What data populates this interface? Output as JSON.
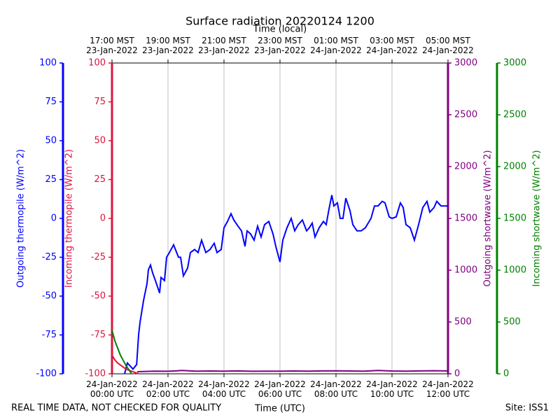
{
  "chart_data": {
    "type": "line",
    "title": "Surface radiation 20220124 1200",
    "x_label": "Time (UTC)",
    "x_top_label": "Time (local)",
    "footer_left": "REAL TIME DATA, NOT CHECKED FOR QUALITY",
    "footer_right": "Site: ISS1",
    "xlim": [
      0,
      12
    ],
    "xticks": [
      {
        "value": 0,
        "label": "24-Jan-2022\n00:00 UTC"
      },
      {
        "value": 2,
        "label": "24-Jan-2022\n02:00 UTC"
      },
      {
        "value": 4,
        "label": "24-Jan-2022\n04:00 UTC"
      },
      {
        "value": 6,
        "label": "24-Jan-2022\n06:00 UTC"
      },
      {
        "value": 8,
        "label": "24-Jan-2022\n08:00 UTC"
      },
      {
        "value": 10,
        "label": "24-Jan-2022\n10:00 UTC"
      },
      {
        "value": 12,
        "label": "24-Jan-2022\n12:00 UTC"
      }
    ],
    "x_top_ticks": [
      {
        "value": 0,
        "label": "17:00 MST\n23-Jan-2022"
      },
      {
        "value": 2,
        "label": "19:00 MST\n23-Jan-2022"
      },
      {
        "value": 4,
        "label": "21:00 MST\n23-Jan-2022"
      },
      {
        "value": 6,
        "label": "23:00 MST\n23-Jan-2022"
      },
      {
        "value": 8,
        "label": "01:00 MST\n24-Jan-2022"
      },
      {
        "value": 10,
        "label": "03:00 MST\n24-Jan-2022"
      },
      {
        "value": 12,
        "label": "05:00 MST\n24-Jan-2022"
      }
    ],
    "grid": true,
    "axes": [
      {
        "label": "Outgoing thermopile (W/m^2)",
        "color": "#0000ff",
        "ylim": [
          -100,
          100
        ],
        "yticks": [
          -100,
          -75,
          -50,
          -25,
          0,
          25,
          50,
          75,
          100
        ]
      },
      {
        "label": "Incoming thermopile (W/m^2)",
        "color": "#dc143c",
        "ylim": [
          -100,
          100
        ],
        "yticks": [
          -100,
          -75,
          -50,
          -25,
          0,
          25,
          50,
          75,
          100
        ]
      },
      {
        "label": "Outgoing shortwave (W/m^2)",
        "color": "#800080",
        "ylim": [
          0,
          3000
        ],
        "yticks": [
          0,
          500,
          1000,
          1500,
          2000,
          2500,
          3000
        ]
      },
      {
        "label": "Incoming shortwave (W/m^2)",
        "color": "#008000",
        "ylim": [
          0,
          3000
        ],
        "yticks": [
          0,
          500,
          1000,
          1500,
          2000,
          2500,
          3000
        ]
      }
    ],
    "series": [
      {
        "name": "Outgoing thermopile",
        "color": "#0000ff",
        "axis": 0,
        "x": [
          0.45,
          0.55,
          0.65,
          0.75,
          0.88,
          0.95,
          1.0,
          1.125,
          1.25,
          1.3,
          1.375,
          1.45,
          1.55,
          1.7,
          1.75,
          1.875,
          1.95,
          2.05,
          2.2,
          2.375,
          2.45,
          2.55,
          2.7,
          2.8,
          2.95,
          3.075,
          3.2,
          3.35,
          3.5,
          3.65,
          3.75,
          3.9,
          4.0,
          4.125,
          4.25,
          4.35,
          4.5,
          4.625,
          4.75,
          4.825,
          4.95,
          5.075,
          5.2,
          5.325,
          5.45,
          5.6,
          5.75,
          5.85,
          6.0,
          6.1,
          6.25,
          6.4,
          6.525,
          6.65,
          6.8,
          6.95,
          7.05,
          7.15,
          7.25,
          7.4,
          7.55,
          7.65,
          7.75,
          7.85,
          7.925,
          8.05,
          8.15,
          8.25,
          8.35,
          8.5,
          8.6,
          8.75,
          8.9,
          9.05,
          9.25,
          9.375,
          9.5,
          9.65,
          9.75,
          9.9,
          10.0,
          10.15,
          10.3,
          10.4,
          10.5,
          10.65,
          10.8,
          10.95,
          11.1,
          11.25,
          11.35,
          11.5,
          11.6,
          11.75,
          11.85,
          12.0
        ],
        "values": [
          -100,
          -93,
          -95,
          -97,
          -94,
          -75,
          -67,
          -53,
          -42,
          -33,
          -30,
          -35,
          -40,
          -48,
          -38,
          -40,
          -25,
          -22,
          -17,
          -25,
          -25,
          -37,
          -32,
          -22,
          -20,
          -22,
          -14,
          -22,
          -20,
          -16,
          -22,
          -20,
          -6,
          -2,
          3,
          -1,
          -5,
          -8,
          -18,
          -8,
          -10,
          -14,
          -5,
          -12,
          -4,
          -2,
          -10,
          -18,
          -28,
          -14,
          -6,
          0,
          -8,
          -4,
          -1,
          -8,
          -6,
          -3,
          -12,
          -6,
          -2,
          -4,
          6,
          15,
          8,
          10,
          0,
          0,
          13,
          5,
          -4,
          -8,
          -8,
          -6,
          0,
          8,
          8,
          11,
          10,
          1,
          0,
          1,
          10,
          7,
          -4,
          -6,
          -14,
          -4,
          7,
          11,
          4,
          7,
          11,
          8,
          8,
          8
        ]
      },
      {
        "name": "Incoming thermopile",
        "color": "#dc143c",
        "axis": 1,
        "x": [
          0,
          0.1,
          0.2,
          0.35,
          0.5,
          0.65,
          0.8,
          0.95
        ],
        "values": [
          -88,
          -91,
          -93,
          -95,
          -97,
          -98,
          -99,
          -100
        ]
      },
      {
        "name": "Outgoing shortwave",
        "color": "#800080",
        "axis": 2,
        "x": [
          0.9,
          1.5,
          2.0,
          2.5,
          3.0,
          3.5,
          4.0,
          4.5,
          5.0,
          5.5,
          6.0,
          6.5,
          7.0,
          7.5,
          8.0,
          8.5,
          9.0,
          9.5,
          10.0,
          10.5,
          11.0,
          11.5,
          12.0
        ],
        "values": [
          20,
          25,
          24,
          32,
          26,
          27,
          25,
          28,
          24,
          26,
          25,
          27,
          26,
          28,
          29,
          27,
          26,
          32,
          27,
          26,
          28,
          30,
          28
        ]
      },
      {
        "name": "Incoming shortwave",
        "color": "#008000",
        "axis": 3,
        "x": [
          0,
          0.1,
          0.2,
          0.3,
          0.4,
          0.5,
          0.6,
          0.7
        ],
        "values": [
          420,
          320,
          250,
          180,
          130,
          80,
          40,
          0
        ]
      }
    ]
  }
}
